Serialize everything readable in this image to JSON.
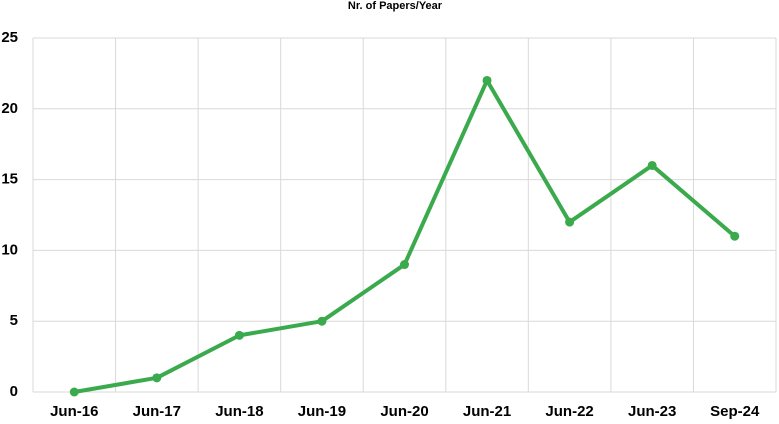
{
  "chart_data": {
    "type": "line",
    "title": "Nr. of Papers/Year",
    "categories": [
      "Jun-16",
      "Jun-17",
      "Jun-18",
      "Jun-19",
      "Jun-20",
      "Jun-21",
      "Jun-22",
      "Jun-23",
      "Sep-24"
    ],
    "values": [
      0,
      1,
      4,
      5,
      9,
      22,
      12,
      16,
      11
    ],
    "color": "#3aaa4c",
    "ylim": [
      0,
      25
    ],
    "yticks": [
      0,
      5,
      10,
      15,
      20,
      25
    ],
    "grid": true
  }
}
